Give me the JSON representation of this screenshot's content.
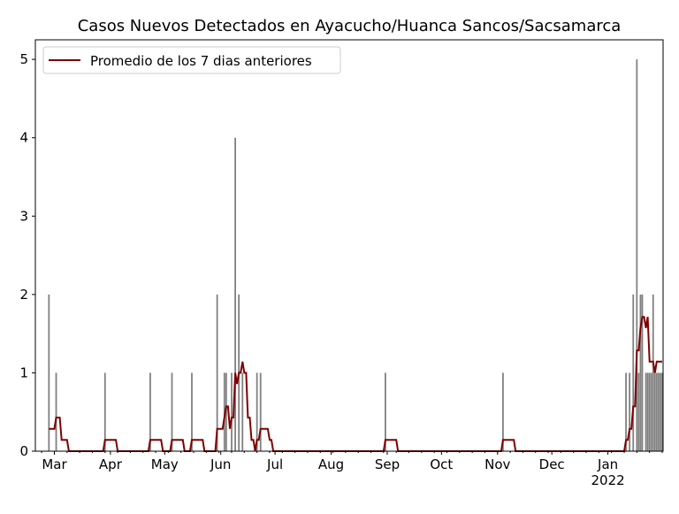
{
  "chart_data": {
    "type": "bar",
    "title": "Casos Nuevos Detectados en Ayacucho/Huanca Sancos/Sacsamarca",
    "xlabel": "",
    "ylabel": "",
    "xlim": [
      "2021-02-19",
      "2022-01-31"
    ],
    "ylim": [
      0,
      5.25
    ],
    "yticks": [
      0,
      1,
      2,
      3,
      4,
      5
    ],
    "xticks": [
      {
        "date": "2021-03-01",
        "label": "Mar"
      },
      {
        "date": "2021-04-01",
        "label": "Apr"
      },
      {
        "date": "2021-05-01",
        "label": "May"
      },
      {
        "date": "2021-06-01",
        "label": "Jun"
      },
      {
        "date": "2021-07-01",
        "label": "Jul"
      },
      {
        "date": "2021-08-01",
        "label": "Aug"
      },
      {
        "date": "2021-09-01",
        "label": "Sep"
      },
      {
        "date": "2021-10-01",
        "label": "Oct"
      },
      {
        "date": "2021-11-01",
        "label": "Nov"
      },
      {
        "date": "2021-12-01",
        "label": "Dec"
      },
      {
        "date": "2022-01-01",
        "label": "Jan",
        "sublabel": "2022"
      }
    ],
    "grid": false,
    "legend": {
      "placement": "top-left",
      "entries": [
        "Promedio de los 7 dias anteriores"
      ]
    },
    "colors": {
      "bars": "#808080",
      "line": "#800000"
    },
    "series": [
      {
        "type": "bar",
        "points": [
          [
            "2021-02-26",
            2
          ],
          [
            "2021-03-02",
            1
          ],
          [
            "2021-03-29",
            1
          ],
          [
            "2021-04-23",
            1
          ],
          [
            "2021-05-05",
            1
          ],
          [
            "2021-05-16",
            1
          ],
          [
            "2021-05-30",
            2
          ],
          [
            "2021-06-03",
            1
          ],
          [
            "2021-06-04",
            1
          ],
          [
            "2021-06-07",
            1
          ],
          [
            "2021-06-09",
            4
          ],
          [
            "2021-06-11",
            2
          ],
          [
            "2021-06-13",
            1
          ],
          [
            "2021-06-21",
            1
          ],
          [
            "2021-06-23",
            1
          ],
          [
            "2021-08-31",
            1
          ],
          [
            "2021-11-04",
            1
          ],
          [
            "2022-01-11",
            1
          ],
          [
            "2022-01-13",
            1
          ],
          [
            "2022-01-15",
            2
          ],
          [
            "2022-01-17",
            5
          ],
          [
            "2022-01-18",
            1
          ],
          [
            "2022-01-19",
            2
          ],
          [
            "2022-01-20",
            2
          ],
          [
            "2022-01-22",
            1
          ],
          [
            "2022-01-23",
            1
          ],
          [
            "2022-01-24",
            1
          ],
          [
            "2022-01-25",
            1
          ],
          [
            "2022-01-26",
            2
          ],
          [
            "2022-01-27",
            1
          ],
          [
            "2022-01-28",
            1
          ],
          [
            "2022-01-29",
            1
          ],
          [
            "2022-01-30",
            1
          ],
          [
            "2022-01-31",
            1
          ]
        ]
      },
      {
        "type": "line",
        "name": "Promedio de los 7 dias anteriores",
        "window_days": 7
      }
    ]
  }
}
